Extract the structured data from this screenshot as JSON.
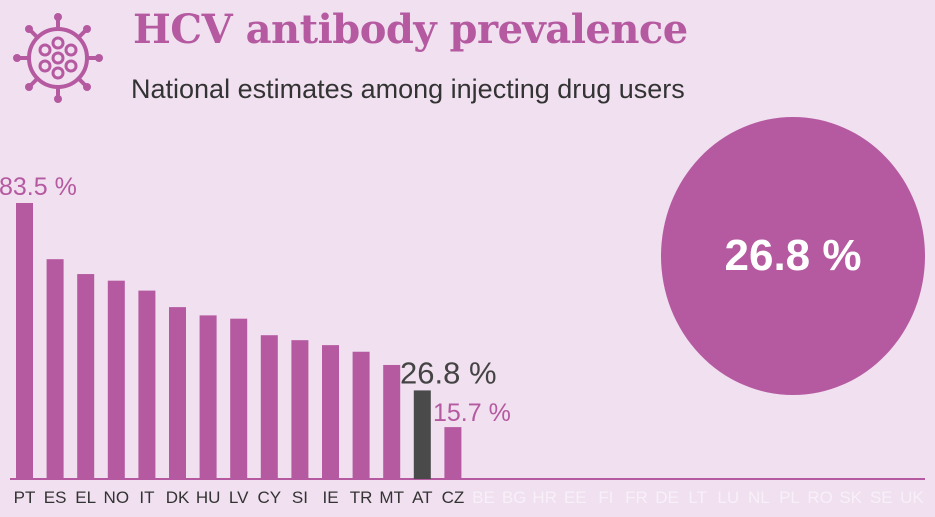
{
  "header": {
    "title": "HCV antibody prevalence",
    "subtitle": "National estimates among injecting drug users",
    "logo_icon": "virus-icon"
  },
  "highlight": {
    "value_label": "26.8 %",
    "color": "#b55aa0"
  },
  "colors": {
    "bar": "#b55aa0",
    "highlight_bar": "#4a4a4a",
    "missing_label": "#f8f0f8",
    "background": "#f0e0f0"
  },
  "chart_data": {
    "type": "bar",
    "ylim": [
      0,
      100
    ],
    "categories": [
      "PT",
      "ES",
      "EL",
      "NO",
      "IT",
      "DK",
      "HU",
      "LV",
      "CY",
      "SI",
      "IE",
      "TR",
      "MT",
      "AT",
      "CZ",
      "BE",
      "BG",
      "HR",
      "EE",
      "FI",
      "FR",
      "DE",
      "LT",
      "LU",
      "NL",
      "PL",
      "RO",
      "SK",
      "SE",
      "UK"
    ],
    "values": [
      83.5,
      66.5,
      62,
      60,
      57,
      52,
      49.5,
      48.5,
      43.5,
      42,
      40.5,
      38.5,
      34.5,
      26.8,
      15.7,
      null,
      null,
      null,
      null,
      null,
      null,
      null,
      null,
      null,
      null,
      null,
      null,
      null,
      null,
      null
    ],
    "highlight_category": "AT",
    "data_labels": [
      {
        "category": "PT",
        "text": "83.5 %"
      },
      {
        "category": "AT",
        "text": "26.8 %"
      },
      {
        "category": "CZ",
        "text": "15.7 %"
      }
    ]
  }
}
